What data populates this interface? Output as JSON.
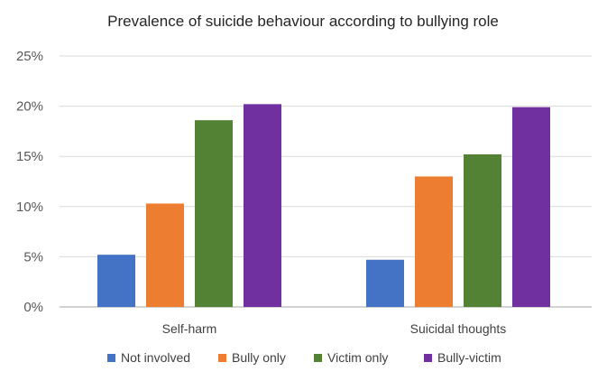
{
  "chart_data": {
    "type": "bar",
    "title": "Prevalence of suicide behaviour according to bullying role",
    "xlabel": "",
    "ylabel": "",
    "categories": [
      "Self-harm",
      "Suicidal thoughts"
    ],
    "series": [
      {
        "name": "Not involved",
        "values": [
          5.2,
          4.7
        ],
        "color": "#4472c4"
      },
      {
        "name": "Bully only",
        "values": [
          10.3,
          13.0
        ],
        "color": "#ed7d31"
      },
      {
        "name": "Victim only",
        "values": [
          18.6,
          15.2
        ],
        "color": "#548235"
      },
      {
        "name": "Bully-victim",
        "values": [
          20.2,
          19.9
        ],
        "color": "#7030a0"
      }
    ],
    "ylim": [
      0,
      25
    ],
    "yticks": [
      0,
      5,
      10,
      15,
      20,
      25
    ],
    "ytick_labels": [
      "0%",
      "5%",
      "10%",
      "15%",
      "20%",
      "25%"
    ],
    "grid": true,
    "legend_position": "bottom"
  }
}
